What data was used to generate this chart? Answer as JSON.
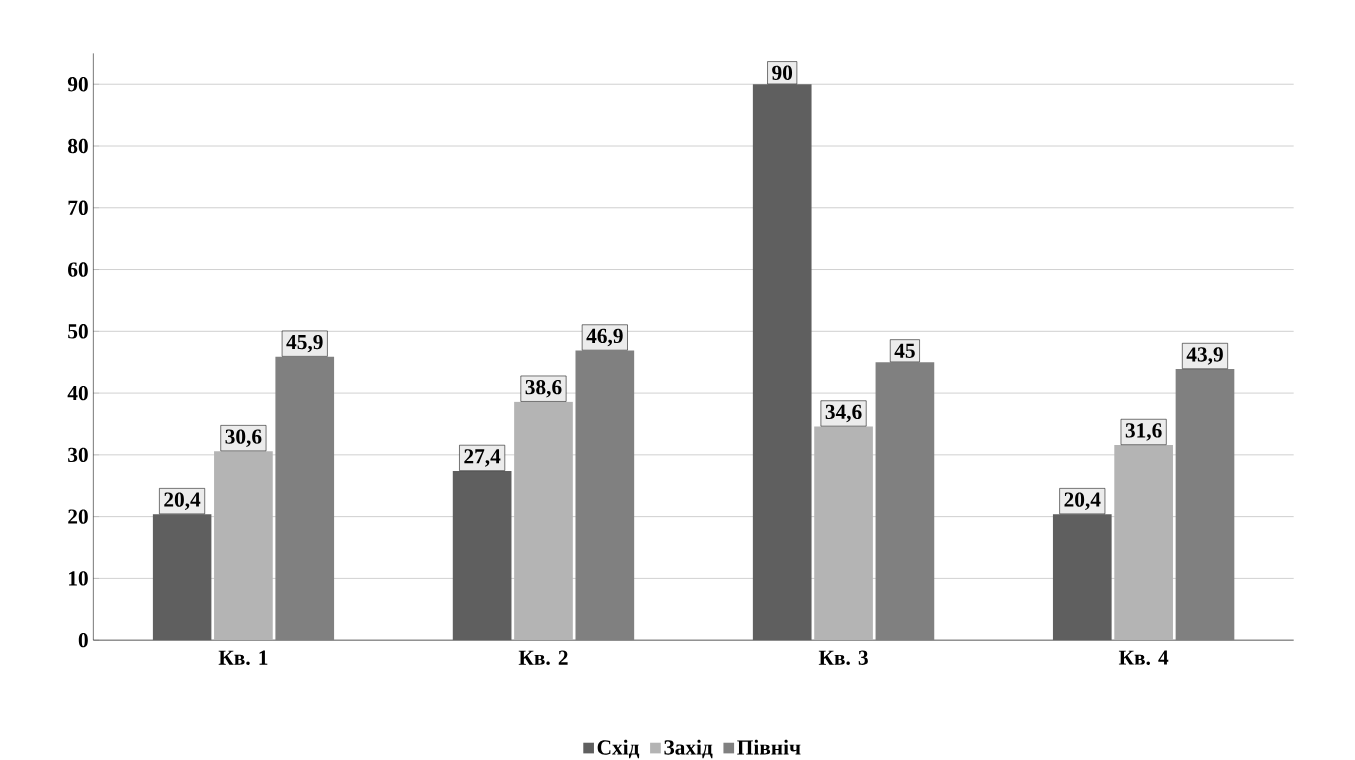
{
  "chart_data": {
    "type": "bar",
    "categories": [
      "Кв. 1",
      "Кв. 2",
      "Кв. 3",
      "Кв. 4"
    ],
    "series": [
      {
        "name": "Схід",
        "color": "#5f5f5f",
        "values": [
          20.4,
          27.4,
          90,
          20.4
        ],
        "value_labels": [
          "20,4",
          "27,4",
          "90",
          "20,4"
        ]
      },
      {
        "name": "Захід",
        "color": "#b4b4b4",
        "values": [
          30.6,
          38.6,
          34.6,
          31.6
        ],
        "value_labels": [
          "30,6",
          "38,6",
          "34,6",
          "31,6"
        ]
      },
      {
        "name": "Північ",
        "color": "#808080",
        "values": [
          45.9,
          46.9,
          45,
          43.9
        ],
        "value_labels": [
          "45,9",
          "46,9",
          "45",
          "43,9"
        ]
      }
    ],
    "ylim": [
      0,
      95
    ],
    "yticks": [
      0,
      10,
      20,
      30,
      40,
      50,
      60,
      70,
      80,
      90
    ],
    "grid": "y",
    "legend": "bottom"
  }
}
